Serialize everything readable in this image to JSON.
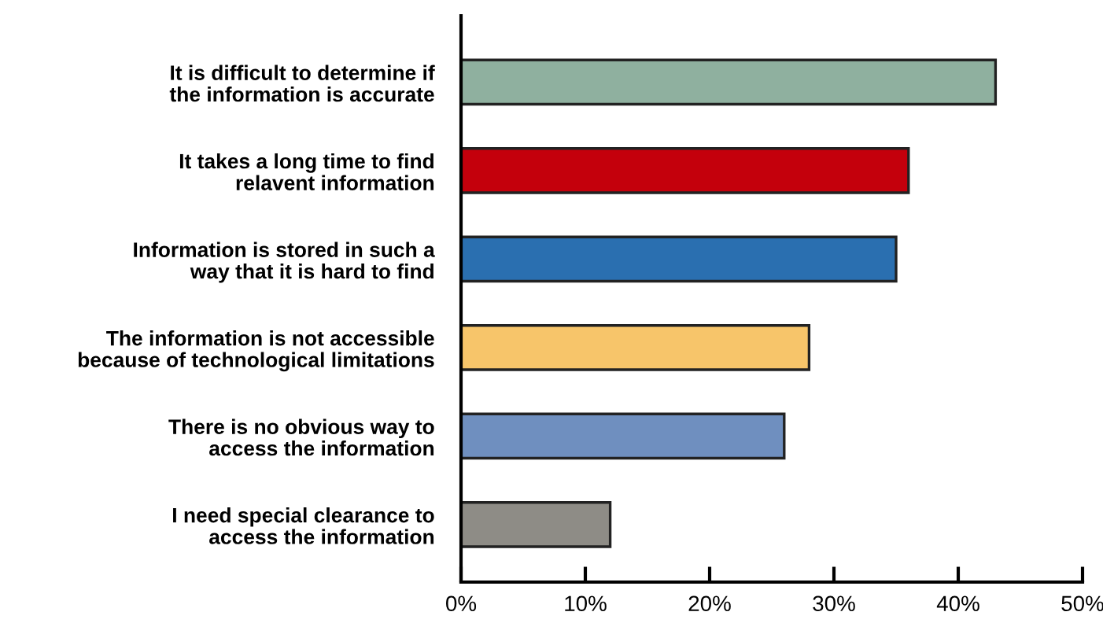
{
  "chart_data": {
    "type": "bar",
    "orientation": "horizontal",
    "categories": [
      "It is difficult to determine if\nthe information is accurate",
      "It takes a long time to find\nrelavent information",
      "Information is stored in such a\nway that it is hard to find",
      "The information is not accessible\nbecause of technological limitations",
      "There is no obvious way to\naccess the information",
      "I need special clearance to\naccess the information"
    ],
    "values": [
      43,
      36,
      35,
      28,
      26,
      12
    ],
    "colors": [
      "#8fb09f",
      "#c4000c",
      "#2a6fb0",
      "#f7c56a",
      "#6f8fbf",
      "#8e8c86"
    ],
    "xlim": [
      0,
      50
    ],
    "xticks": [
      {
        "value": 0,
        "label": "0%"
      },
      {
        "value": 10,
        "label": "10%"
      },
      {
        "value": 20,
        "label": "20%"
      },
      {
        "value": 30,
        "label": "30%"
      },
      {
        "value": 40,
        "label": "40%"
      },
      {
        "value": 50,
        "label": "50%"
      }
    ],
    "grid": false,
    "legend": false
  }
}
